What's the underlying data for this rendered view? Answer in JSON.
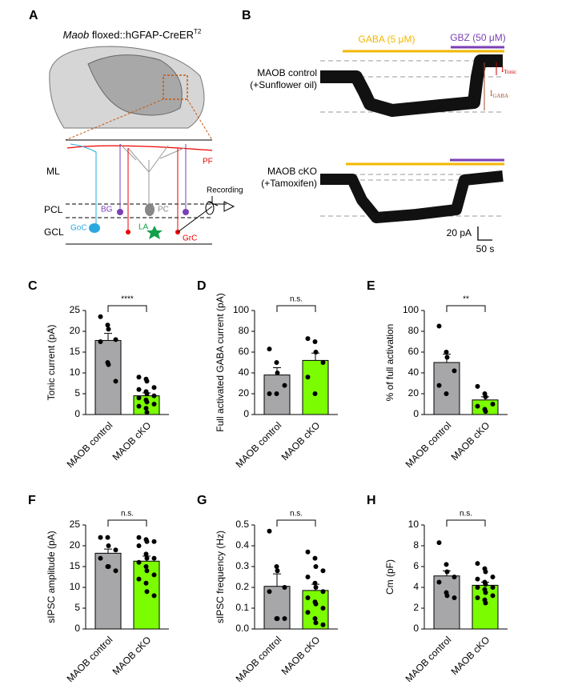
{
  "panels": {
    "A": {
      "letter": "A",
      "title_italic": "Maob",
      "title_main": " floxed::hGFAP-CreER",
      "title_sup": "T2",
      "labels": {
        "ml": "ML",
        "pcl": "PCL",
        "gcl": "GCL",
        "pf": "PF",
        "bg": "BG",
        "pc": "PC",
        "goc": "GoC",
        "la": "LA",
        "grc": "GrC",
        "recording": "Recording"
      }
    },
    "B": {
      "letter": "B",
      "gaba": "GABA (5 μM)",
      "gbz": "GBZ (50 μM)",
      "control_1": "MAOB control",
      "control_2": "(+Sunflower oil)",
      "cko_1": "MAOB cKO",
      "cko_2": "(+Tamoxifen)",
      "scale_y": "20 pA",
      "scale_x": "50 s",
      "i_tonic": "I",
      "i_tonic_sub": "Tonic",
      "i_gaba": "I",
      "i_gaba_sub": "GABA"
    }
  },
  "chart_data": [
    {
      "type": "bar",
      "panel": "C",
      "ylabel": "Tonic current (pA)",
      "categories": [
        "MAOB control",
        "MAOB cKO"
      ],
      "colors": [
        "#a7a7a9",
        "#7cfc00"
      ],
      "values": [
        17.8,
        4.5
      ],
      "errors": [
        1.7,
        0.7
      ],
      "points": [
        [
          23.5,
          21.5,
          20.5,
          18,
          17.5,
          12.5,
          12,
          8
        ],
        [
          9,
          8.5,
          8,
          6.5,
          6,
          5.5,
          5,
          4.5,
          4,
          3.5,
          3,
          2.5,
          2,
          1.5,
          0.5
        ]
      ],
      "ylim": [
        0,
        25
      ],
      "yticks": [
        0,
        5,
        10,
        15,
        20,
        25
      ],
      "significance": "****"
    },
    {
      "type": "bar",
      "panel": "D",
      "ylabel": "Full activated GABA current (pA)",
      "categories": [
        "MAOB control",
        "MAOB cKO"
      ],
      "colors": [
        "#a7a7a9",
        "#7cfc00"
      ],
      "values": [
        38,
        52
      ],
      "errors": [
        7,
        7
      ],
      "points": [
        [
          63,
          50,
          40,
          28,
          20,
          20
        ],
        [
          73,
          70,
          60,
          50,
          36,
          20
        ]
      ],
      "ylim": [
        0,
        100
      ],
      "yticks": [
        0,
        20,
        40,
        60,
        80,
        100
      ],
      "significance": "n.s."
    },
    {
      "type": "bar",
      "panel": "E",
      "ylabel": "% of full activation",
      "categories": [
        "MAOB control",
        "MAOB cKO"
      ],
      "colors": [
        "#a7a7a9",
        "#7cfc00"
      ],
      "values": [
        50,
        14
      ],
      "errors": [
        8,
        3
      ],
      "points": [
        [
          85,
          60,
          55,
          42,
          28,
          20
        ],
        [
          27,
          20,
          17,
          10,
          8,
          5,
          3
        ]
      ],
      "ylim": [
        0,
        100
      ],
      "yticks": [
        0,
        20,
        40,
        60,
        80,
        100
      ],
      "significance": "**"
    },
    {
      "type": "bar",
      "panel": "F",
      "ylabel": "sIPSC amplitude (pA)",
      "categories": [
        "MAOB control",
        "MAOB cKO"
      ],
      "colors": [
        "#a7a7a9",
        "#7cfc00"
      ],
      "values": [
        18.2,
        16.3
      ],
      "errors": [
        1,
        1.2
      ],
      "points": [
        [
          22,
          22,
          20,
          19,
          17,
          15,
          15,
          14
        ],
        [
          22,
          21.5,
          21,
          21,
          20,
          18,
          17,
          17,
          16,
          15,
          14,
          13,
          12,
          11,
          9,
          8
        ]
      ],
      "ylim": [
        0,
        25
      ],
      "yticks": [
        0,
        5,
        10,
        15,
        20,
        25
      ],
      "significance": "n.s."
    },
    {
      "type": "bar",
      "panel": "G",
      "ylabel": "sIPSC frequency (Hz)",
      "categories": [
        "MAOB control",
        "MAOB cKO"
      ],
      "colors": [
        "#a7a7a9",
        "#7cfc00"
      ],
      "values": [
        0.205,
        0.185
      ],
      "errors": [
        0.06,
        0.03
      ],
      "points": [
        [
          0.47,
          0.3,
          0.28,
          0.2,
          0.18,
          0.05,
          0.05,
          0.05
        ],
        [
          0.37,
          0.34,
          0.3,
          0.28,
          0.25,
          0.22,
          0.2,
          0.18,
          0.15,
          0.13,
          0.12,
          0.1,
          0.08,
          0.05,
          0.03,
          0.02
        ]
      ],
      "ylim": [
        0,
        0.5
      ],
      "yticks": [
        {
          "value": 0,
          "label": "0.0"
        },
        0.1,
        0.2,
        0.3,
        0.4,
        0.5
      ],
      "significance": "n.s."
    },
    {
      "type": "bar",
      "panel": "H",
      "ylabel": "Cm (pF)",
      "categories": [
        "MAOB control",
        "MAOB cKO"
      ],
      "colors": [
        "#a7a7a9",
        "#7cfc00"
      ],
      "values": [
        5.1,
        4.2
      ],
      "errors": [
        0.5,
        0.3
      ],
      "points": [
        [
          8.3,
          6.2,
          5.5,
          5,
          4.5,
          3.5,
          3.2,
          3
        ],
        [
          6.3,
          5.8,
          5.5,
          5,
          4.8,
          4.5,
          4.3,
          4,
          4,
          3.8,
          3.5,
          3.2,
          3,
          2.8,
          2.5
        ]
      ],
      "ylim": [
        0,
        10
      ],
      "yticks": [
        0,
        2,
        4,
        6,
        8,
        10
      ],
      "significance": "n.s."
    }
  ]
}
